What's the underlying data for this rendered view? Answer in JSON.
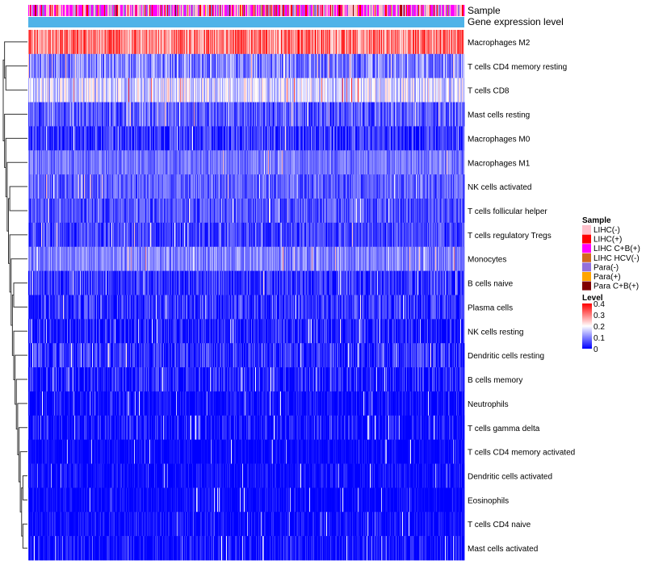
{
  "chart_data": {
    "type": "heatmap",
    "annotation_titles": [
      "Sample",
      "Gene expression level"
    ],
    "rows": [
      {
        "name": "Macrophages M2",
        "mean": 0.3,
        "spread": 0.08
      },
      {
        "name": "T cells CD4 memory resting",
        "mean": 0.1,
        "spread": 0.07
      },
      {
        "name": "T cells CD8",
        "mean": 0.17,
        "spread": 0.07
      },
      {
        "name": "Mast cells resting",
        "mean": 0.07,
        "spread": 0.06
      },
      {
        "name": "Macrophages M0",
        "mean": 0.04,
        "spread": 0.06
      },
      {
        "name": "Macrophages M1",
        "mean": 0.09,
        "spread": 0.04
      },
      {
        "name": "NK cells activated",
        "mean": 0.07,
        "spread": 0.05
      },
      {
        "name": "T cells follicular helper",
        "mean": 0.06,
        "spread": 0.05
      },
      {
        "name": "T cells regulatory  Tregs",
        "mean": 0.05,
        "spread": 0.05
      },
      {
        "name": "Monocytes",
        "mean": 0.1,
        "spread": 0.05
      },
      {
        "name": "B cells naive",
        "mean": 0.04,
        "spread": 0.05
      },
      {
        "name": "Plasma cells",
        "mean": 0.035,
        "spread": 0.06
      },
      {
        "name": "NK cells resting",
        "mean": 0.02,
        "spread": 0.06
      },
      {
        "name": "Dendritic cells resting",
        "mean": 0.03,
        "spread": 0.06
      },
      {
        "name": "B cells memory",
        "mean": 0.02,
        "spread": 0.06
      },
      {
        "name": "Neutrophils",
        "mean": 0.005,
        "spread": 0.04
      },
      {
        "name": "T cells gamma delta",
        "mean": 0.008,
        "spread": 0.06
      },
      {
        "name": "T cells CD4 memory activated",
        "mean": 0.003,
        "spread": 0.03
      },
      {
        "name": "Dendritic cells activated",
        "mean": 0.006,
        "spread": 0.04
      },
      {
        "name": "Eosinophils",
        "mean": 0.003,
        "spread": 0.03
      },
      {
        "name": "T cells CD4 naive",
        "mean": 0.005,
        "spread": 0.04
      },
      {
        "name": "Mast cells activated",
        "mean": 0.004,
        "spread": 0.05
      }
    ],
    "n_columns": 540,
    "legend_sample": {
      "title": "Sample",
      "entries": [
        {
          "label": "LIHC(-)",
          "color": "#FFC0CB"
        },
        {
          "label": "LIHC(+)",
          "color": "#FF0000"
        },
        {
          "label": "LIHC C+B(+)",
          "color": "#FF00FF"
        },
        {
          "label": "LIHC HCV(-)",
          "color": "#D2691E"
        },
        {
          "label": "Para(-)",
          "color": "#9370DB"
        },
        {
          "label": "Para(+)",
          "color": "#FFA500"
        },
        {
          "label": "Para C+B(+)",
          "color": "#800000"
        }
      ]
    },
    "legend_level": {
      "title": "Level",
      "ticks": [
        "0.4",
        "0.3",
        "0.2",
        "0.1",
        "0"
      ],
      "tick_values": [
        0.4,
        0.3,
        0.2,
        0.1,
        0
      ],
      "range": [
        0,
        0.4
      ],
      "colors": [
        "#0000FF",
        "#FFFFFF",
        "#FF0000"
      ]
    },
    "expression_bar_color": "#4FB3E8"
  }
}
